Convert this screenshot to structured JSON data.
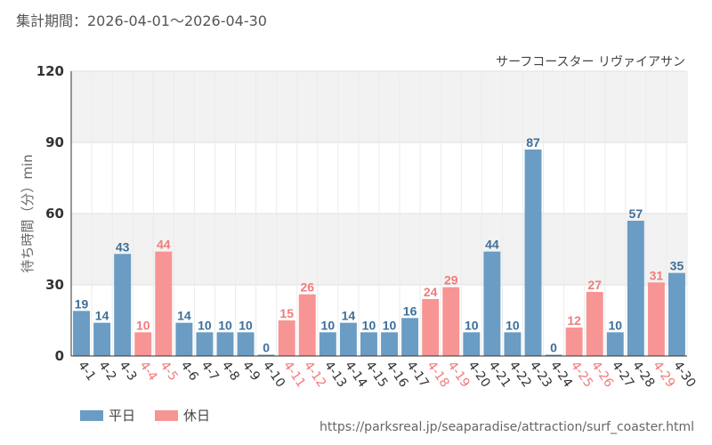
{
  "header": {
    "period": "集計期間：2026-04-01～2026-04-30"
  },
  "colors": {
    "weekday": "#6a9cc4",
    "holiday": "#f79494",
    "weekday_text": "#3d6f9a",
    "holiday_text": "#f07b7b",
    "axis_text": "#333333",
    "grid": "#e0e0e0"
  },
  "chart_data": {
    "type": "bar",
    "title": "サーフコースター リヴァイアサン",
    "ylabel": "待ち時間（分）min",
    "ylim": [
      0,
      120
    ],
    "yticks": [
      0,
      30,
      60,
      90,
      120
    ],
    "grid": true,
    "categories": [
      "4-1",
      "4-2",
      "4-3",
      "4-4",
      "4-5",
      "4-6",
      "4-7",
      "4-8",
      "4-9",
      "4-10",
      "4-11",
      "4-12",
      "4-13",
      "4-14",
      "4-15",
      "4-16",
      "4-17",
      "4-18",
      "4-19",
      "4-20",
      "4-21",
      "4-22",
      "4-23",
      "4-24",
      "4-25",
      "4-26",
      "4-27",
      "4-28",
      "4-29",
      "4-30"
    ],
    "values": [
      19,
      14,
      43,
      10,
      44,
      14,
      10,
      10,
      10,
      0,
      15,
      26,
      10,
      14,
      10,
      10,
      16,
      24,
      29,
      10,
      44,
      10,
      87,
      0,
      12,
      27,
      10,
      57,
      31,
      35
    ],
    "day_type": [
      "平日",
      "平日",
      "平日",
      "休日",
      "休日",
      "平日",
      "平日",
      "平日",
      "平日",
      "平日",
      "休日",
      "休日",
      "平日",
      "平日",
      "平日",
      "平日",
      "平日",
      "休日",
      "休日",
      "平日",
      "平日",
      "平日",
      "平日",
      "平日",
      "休日",
      "休日",
      "平日",
      "平日",
      "休日",
      "平日"
    ],
    "legend": [
      {
        "name": "平日",
        "color": "#6a9cc4"
      },
      {
        "name": "休日",
        "color": "#f79494"
      }
    ],
    "legend_position": "bottom-left"
  },
  "footer": {
    "source": "https://parksreal.jp/seaparadise/attraction/surf_coaster.html"
  }
}
